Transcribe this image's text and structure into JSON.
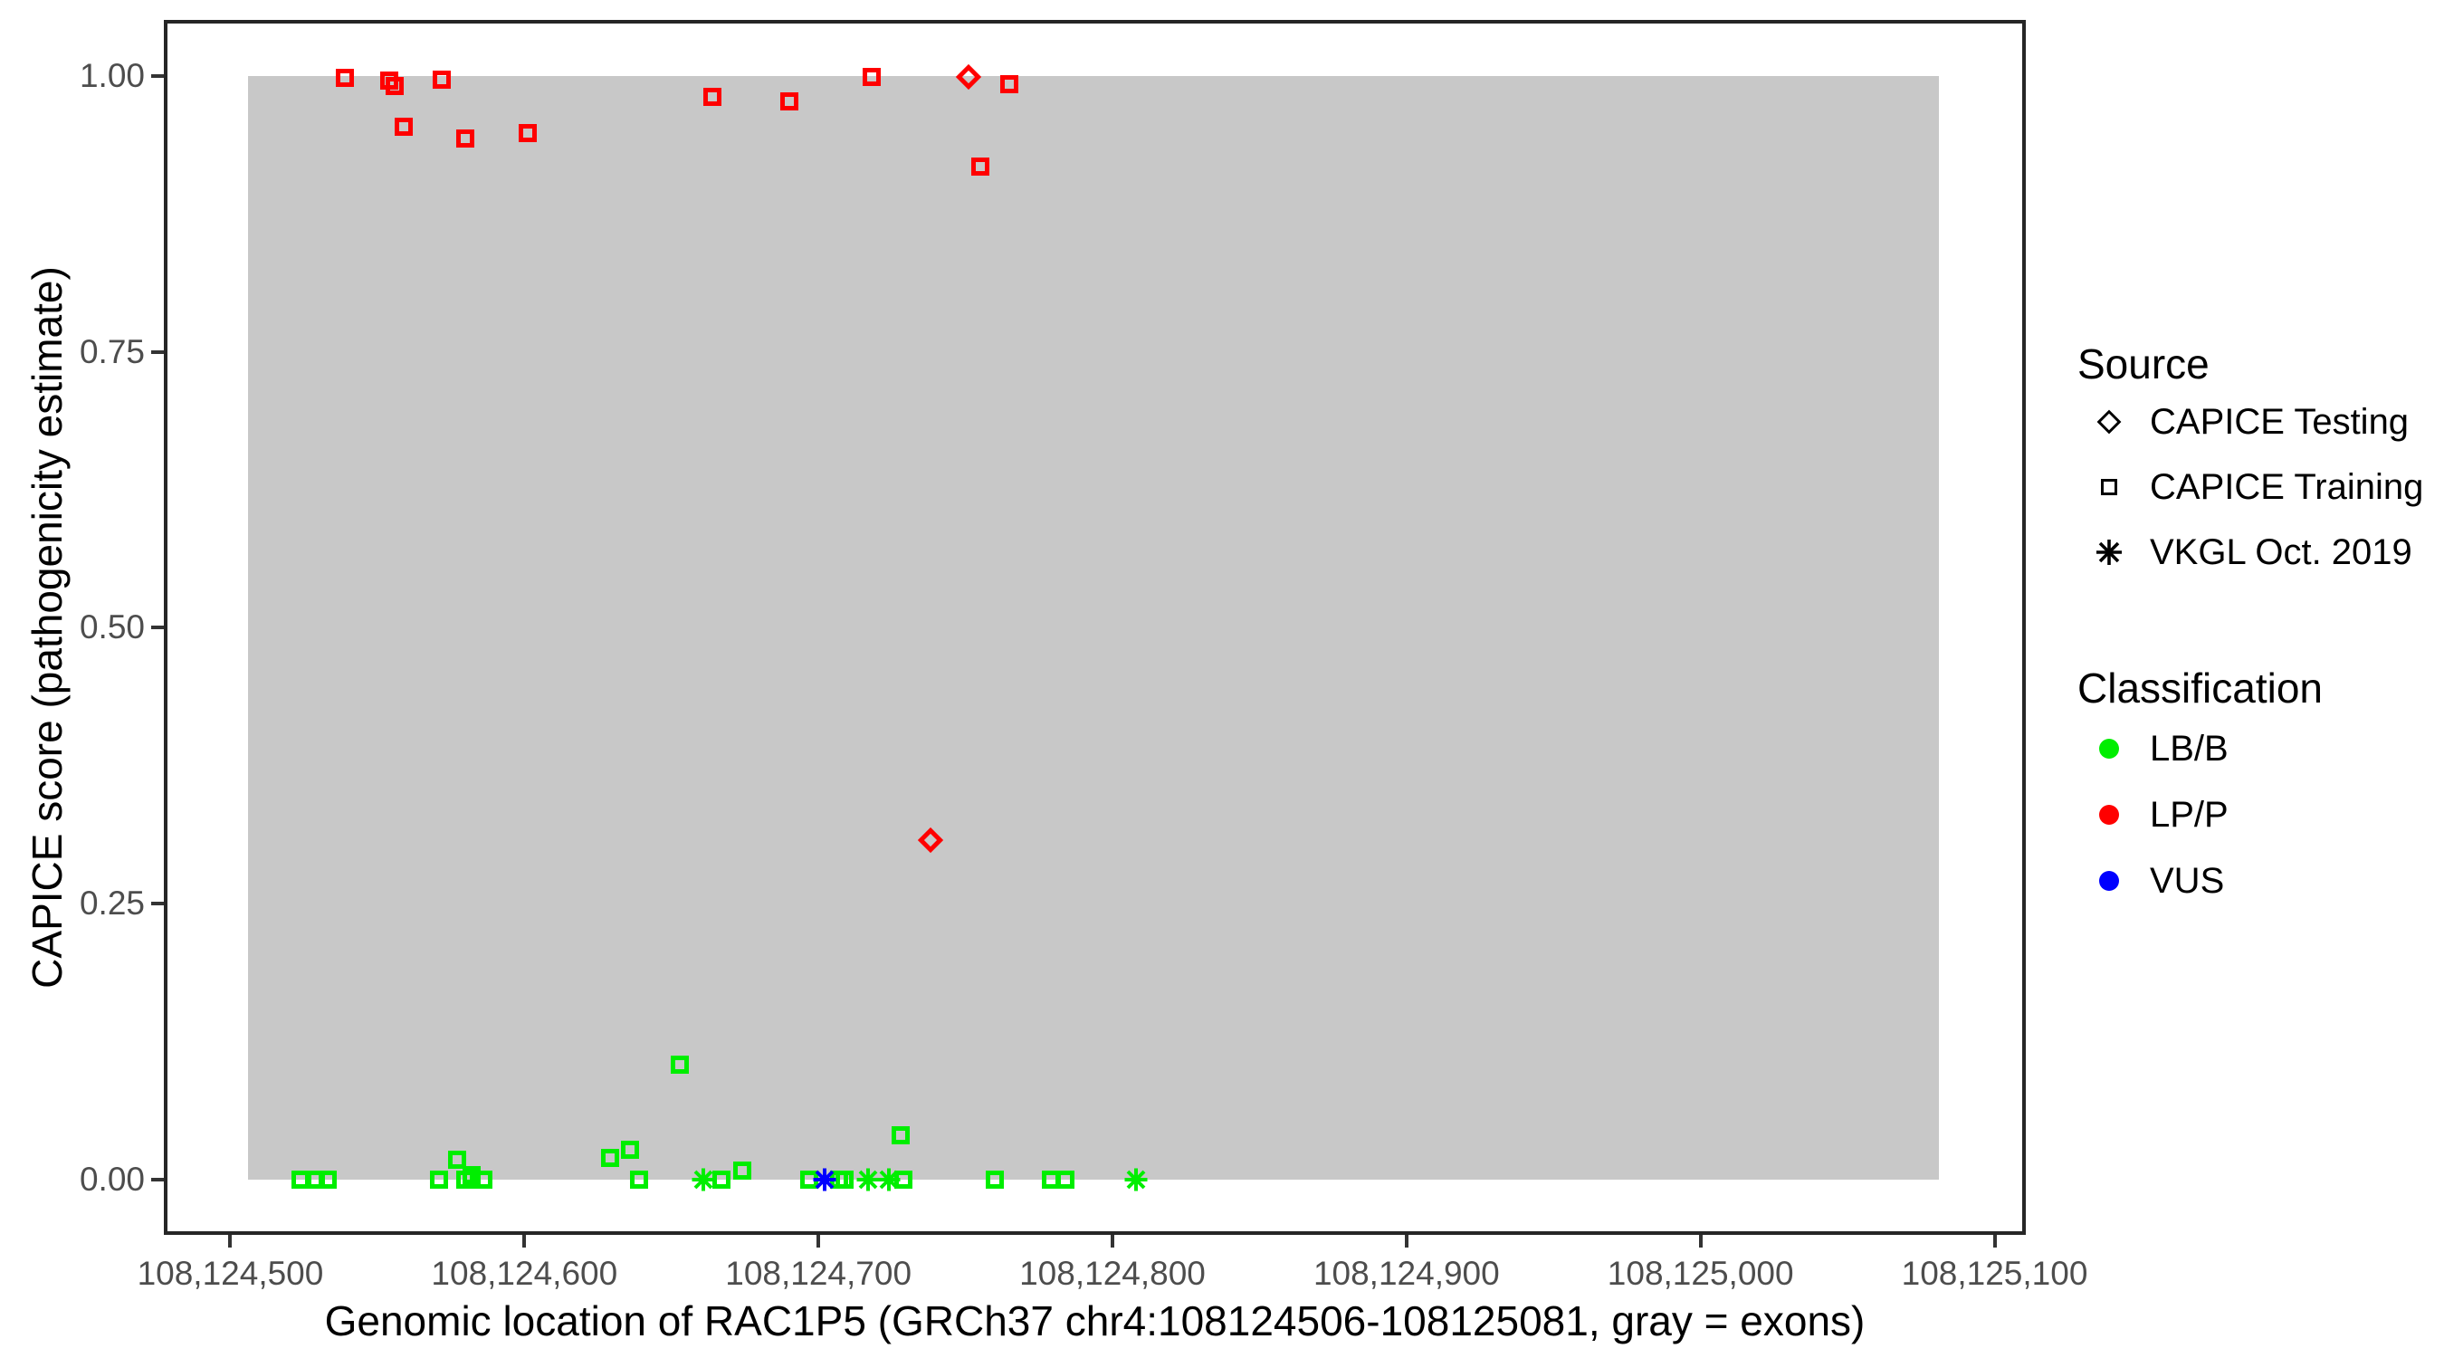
{
  "chart_data": {
    "type": "scatter",
    "title": "",
    "xlabel": "Genomic location of RAC1P5 (GRCh37 chr4:108124506-108125081, gray = exons)",
    "ylabel": "CAPICE score (pathogenicity estimate)",
    "x_axis": {
      "range": [
        108124478,
        108125110
      ],
      "ticks": [
        {
          "value": 108124500,
          "label": "108,124,500"
        },
        {
          "value": 108124600,
          "label": "108,124,600"
        },
        {
          "value": 108124700,
          "label": "108,124,700"
        },
        {
          "value": 108124800,
          "label": "108,124,800"
        },
        {
          "value": 108124900,
          "label": "108,124,900"
        },
        {
          "value": 108125000,
          "label": "108,125,000"
        },
        {
          "value": 108125100,
          "label": "108,125,100"
        }
      ]
    },
    "y_axis": {
      "range": [
        -0.0484,
        1.0492
      ],
      "ticks": [
        {
          "value": 0.0,
          "label": "0.00"
        },
        {
          "value": 0.25,
          "label": "0.25"
        },
        {
          "value": 0.5,
          "label": "0.50"
        },
        {
          "value": 0.75,
          "label": "0.75"
        },
        {
          "value": 1.0,
          "label": "1.00"
        }
      ]
    },
    "exon_region": {
      "start": 108124506,
      "end": 108125081,
      "y_from": 0.0,
      "y_to": 1.0,
      "color": "#C8C8C8",
      "meaning": "gray = exons"
    },
    "series": [
      {
        "name": "CAPICE Training / LP/P",
        "source": "CAPICE Training",
        "classification": "LP/P",
        "marker": "square",
        "color": "#FF0000",
        "points": [
          [
            108124539,
            0.998
          ],
          [
            108124554,
            0.996
          ],
          [
            108124556,
            0.991
          ],
          [
            108124559,
            0.954
          ],
          [
            108124572,
            0.997
          ],
          [
            108124580,
            0.943
          ],
          [
            108124601,
            0.948
          ],
          [
            108124664,
            0.981
          ],
          [
            108124690,
            0.977
          ],
          [
            108124718,
            0.999
          ],
          [
            108124755,
            0.918
          ],
          [
            108124765,
            0.993
          ]
        ]
      },
      {
        "name": "CAPICE Training / LB/B",
        "source": "CAPICE Training",
        "classification": "LB/B",
        "marker": "square",
        "color": "#00EE00",
        "points": [
          [
            108124524,
            0.0
          ],
          [
            108124529,
            0.0
          ],
          [
            108124533,
            0.0
          ],
          [
            108124571,
            0.0
          ],
          [
            108124577,
            0.018
          ],
          [
            108124580,
            0.0
          ],
          [
            108124582,
            0.004
          ],
          [
            108124586,
            0.0
          ],
          [
            108124629,
            0.02
          ],
          [
            108124636,
            0.027
          ],
          [
            108124639,
            0.0
          ],
          [
            108124653,
            0.104
          ],
          [
            108124667,
            0.0
          ],
          [
            108124674,
            0.008
          ],
          [
            108124697,
            0.0
          ],
          [
            108124707,
            0.0
          ],
          [
            108124709,
            0.0
          ],
          [
            108124728,
            0.04
          ],
          [
            108124729,
            0.0
          ],
          [
            108124760,
            0.0
          ],
          [
            108124779,
            0.0
          ],
          [
            108124784,
            0.0
          ]
        ]
      },
      {
        "name": "CAPICE Testing / LP/P",
        "source": "CAPICE Testing",
        "classification": "LP/P",
        "marker": "diamond",
        "color": "#FF0000",
        "points": [
          [
            108124738,
            0.308
          ],
          [
            108124751,
            0.999
          ]
        ]
      },
      {
        "name": "VKGL Oct. 2019 / LB/B",
        "source": "VKGL Oct. 2019",
        "classification": "LB/B",
        "marker": "asterisk",
        "color": "#00EE00",
        "points": [
          [
            108124661,
            0.0
          ],
          [
            108124717,
            0.0
          ],
          [
            108124724,
            0.0
          ],
          [
            108124808,
            0.0
          ]
        ]
      },
      {
        "name": "VKGL Oct. 2019 / VUS",
        "source": "VKGL Oct. 2019",
        "classification": "VUS",
        "marker": "asterisk",
        "color": "#0000FF",
        "points": [
          [
            108124702,
            0.0
          ]
        ]
      }
    ],
    "legend_position": "right",
    "grid": false
  },
  "legend": {
    "source": {
      "title": "Source",
      "items": [
        {
          "label": "CAPICE Testing",
          "marker": "diamond"
        },
        {
          "label": "CAPICE Training",
          "marker": "square"
        },
        {
          "label": "VKGL Oct. 2019",
          "marker": "asterisk"
        }
      ]
    },
    "classification": {
      "title": "Classification",
      "items": [
        {
          "label": "LB/B",
          "color": "#00EE00"
        },
        {
          "label": "LP/P",
          "color": "#FF0000"
        },
        {
          "label": "VUS",
          "color": "#0000FF"
        }
      ]
    }
  }
}
